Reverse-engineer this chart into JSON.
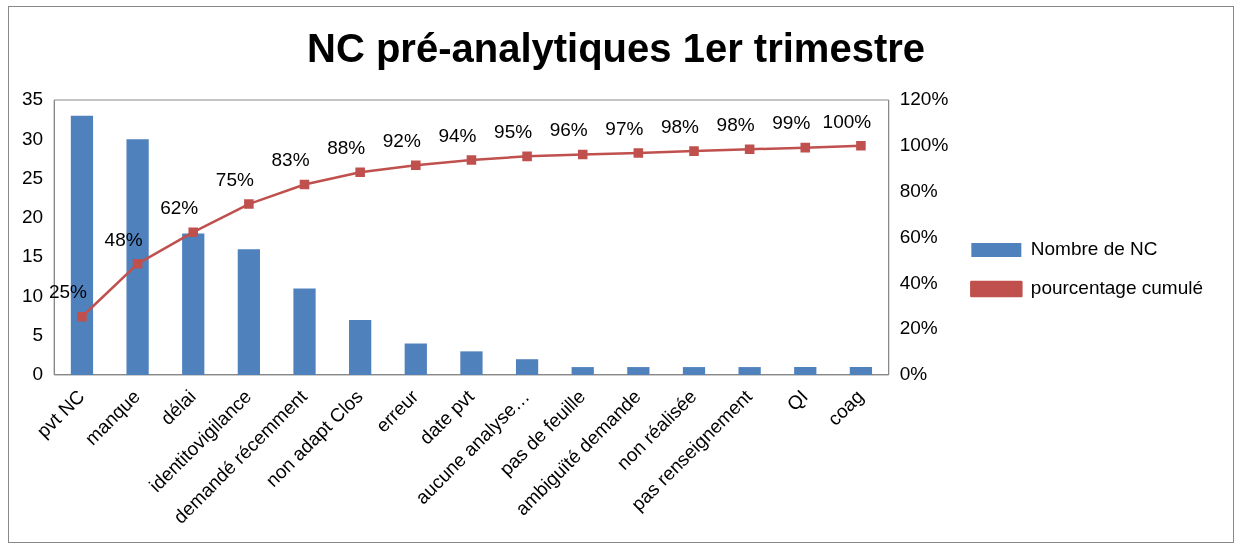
{
  "chart_data": {
    "type": "bar",
    "title": "NC pré-analytiques 1er trimestre",
    "categories": [
      "pvt NC",
      "manque",
      "délai",
      "identitovigilance",
      "demandé récemment",
      "non adapt Clos",
      "erreur",
      "date pvt",
      "aucune analyse…",
      "pas de feuille",
      "ambiguïté demande",
      "non réalisée",
      "pas renseignement",
      "QI",
      "coag"
    ],
    "series": [
      {
        "name": "Nombre de NC",
        "color": "#4f81bd",
        "values": [
          33,
          30,
          18,
          16,
          11,
          7,
          4,
          3,
          2,
          1,
          1,
          1,
          1,
          1,
          1
        ]
      },
      {
        "name": "pourcentage cumulé",
        "type": "line",
        "axis": "y2",
        "color": "#c0504d",
        "marker": "square",
        "values": [
          25.4,
          48.5,
          62.3,
          74.6,
          83.1,
          88.5,
          91.5,
          93.8,
          95.4,
          96.2,
          96.9,
          97.7,
          98.5,
          99.2,
          100
        ],
        "value_labels": [
          "25%",
          "48%",
          "62%",
          "75%",
          "83%",
          "88%",
          "92%",
          "94%",
          "95%",
          "96%",
          "97%",
          "98%",
          "98%",
          "99%",
          "100%"
        ]
      }
    ],
    "ylim": [
      0,
      35
    ],
    "yticks": [
      0,
      5,
      10,
      15,
      20,
      25,
      30,
      35
    ],
    "y2lim": [
      0,
      120
    ],
    "y2ticks": [
      {
        "value": 0,
        "label": "0%"
      },
      {
        "value": 20,
        "label": "20%"
      },
      {
        "value": 40,
        "label": "40%"
      },
      {
        "value": 60,
        "label": "60%"
      },
      {
        "value": 80,
        "label": "80%"
      },
      {
        "value": 100,
        "label": "100%"
      },
      {
        "value": 120,
        "label": "120%"
      }
    ],
    "grid": false,
    "legend": "right"
  }
}
